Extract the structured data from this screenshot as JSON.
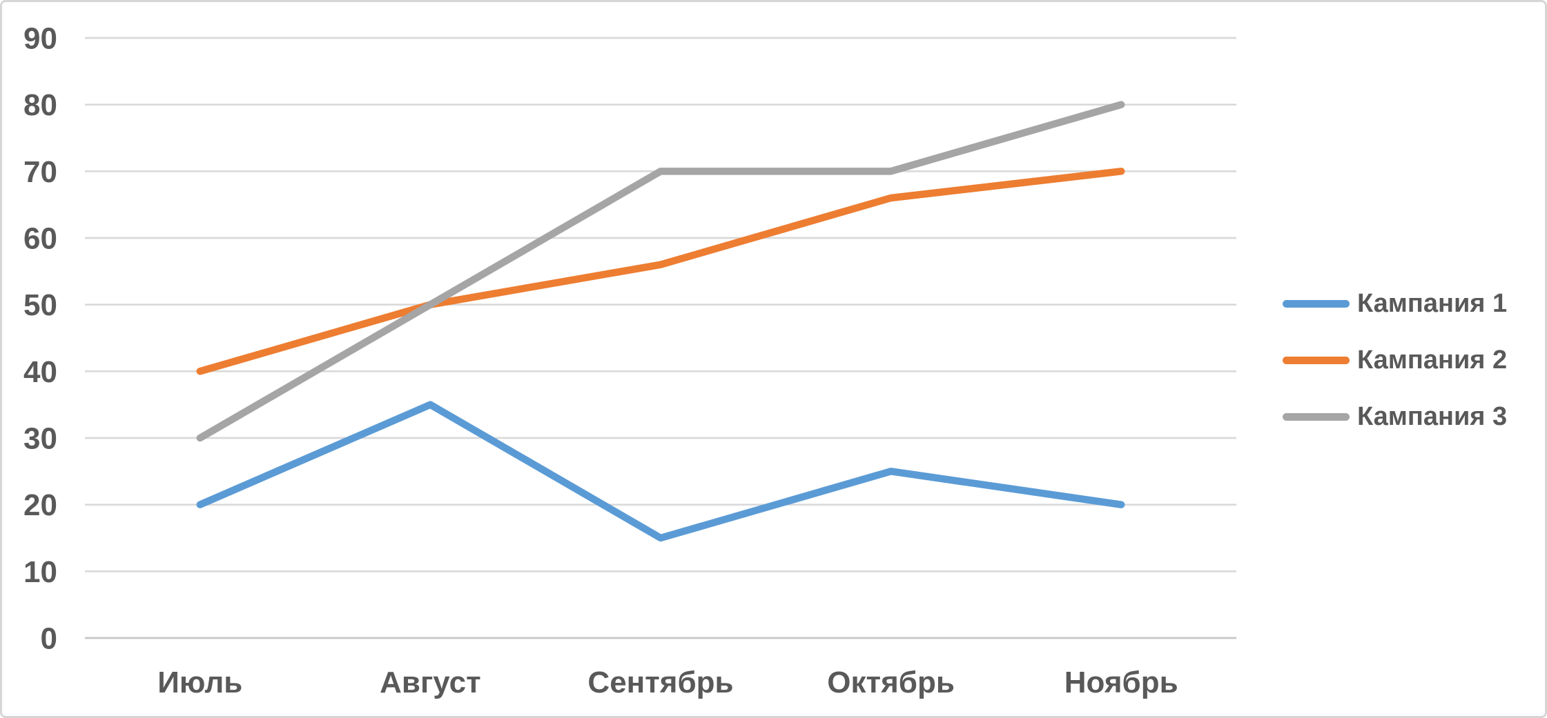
{
  "figure": {
    "background": "#ffffff",
    "border_color": "#d6d6d6",
    "text_color": "#595959",
    "gridline_color": "#d9d9d9",
    "axisline_color": "#c6c6c6"
  },
  "chart_data": {
    "type": "line",
    "title": "",
    "xlabel": "",
    "ylabel": "",
    "categories": [
      "Июль",
      "Август",
      "Сентябрь",
      "Октябрь",
      "Ноябрь"
    ],
    "series": [
      {
        "name": "Кампания 1",
        "color": "#5b9bd5",
        "values": [
          20,
          35,
          15,
          25,
          20
        ]
      },
      {
        "name": "Кампания 2",
        "color": "#ed7d31",
        "values": [
          40,
          50,
          56,
          66,
          70
        ]
      },
      {
        "name": "Кампания 3",
        "color": "#a5a5a5",
        "values": [
          30,
          50,
          70,
          70,
          80
        ]
      }
    ],
    "ylim": [
      0,
      90
    ],
    "y_tick_labels": [
      "0",
      "10",
      "20",
      "30",
      "40",
      "50",
      "60",
      "70",
      "80",
      "90"
    ],
    "grid": true,
    "legend_position": "right"
  }
}
